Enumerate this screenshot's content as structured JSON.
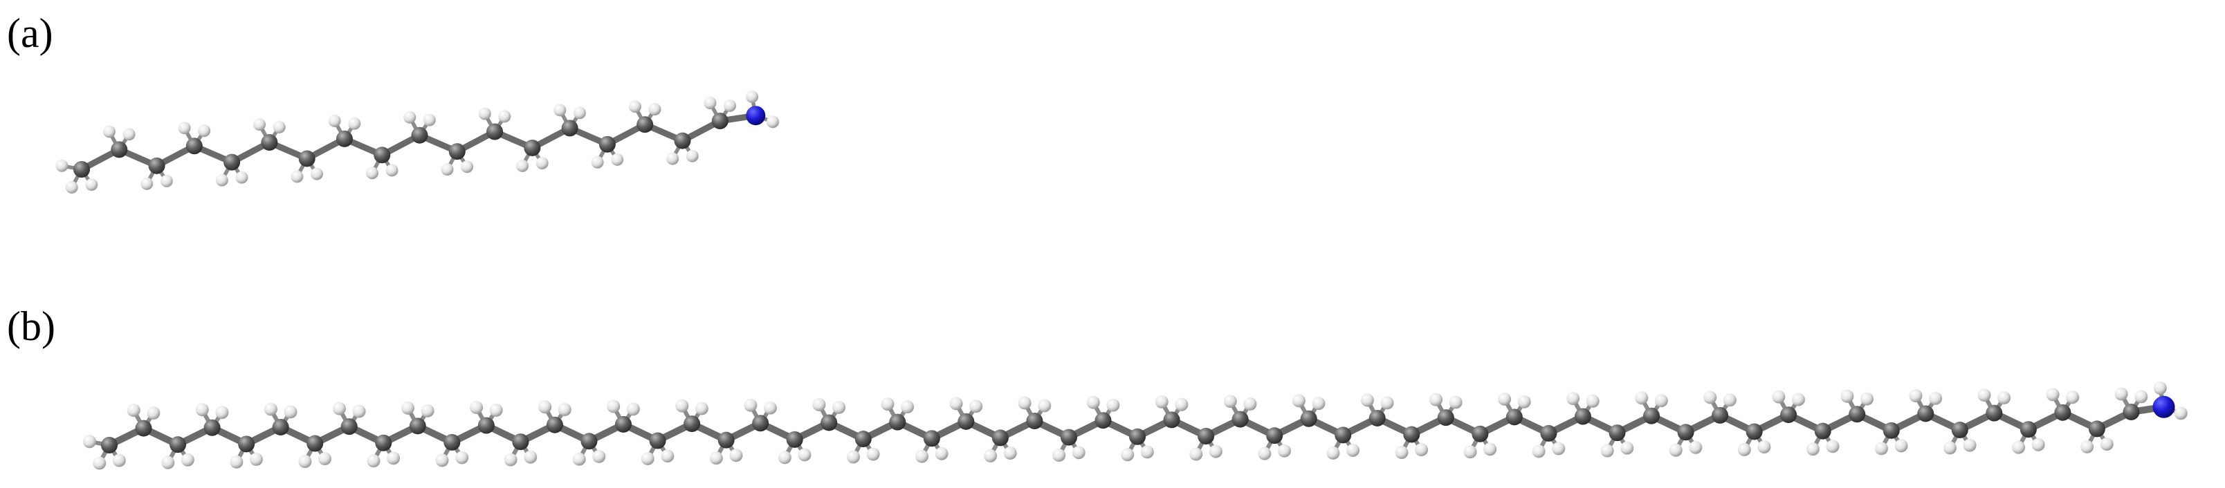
{
  "figure": {
    "panels": [
      {
        "label": "(a)",
        "molecule": {
          "carbon_count": 18,
          "terminal_group": "NH2",
          "colors": {
            "carbon": "#5c5c5c",
            "hydrogen": "#e6e6e6",
            "nitrogen": "#1a1ad6",
            "bond": "#6a6a6a"
          }
        }
      },
      {
        "label": "(b)",
        "molecule": {
          "carbon_count": 60,
          "terminal_group": "NH2",
          "colors": {
            "carbon": "#5c5c5c",
            "hydrogen": "#e6e6e6",
            "nitrogen": "#1a1ad6",
            "bond": "#6a6a6a"
          }
        }
      }
    ]
  }
}
